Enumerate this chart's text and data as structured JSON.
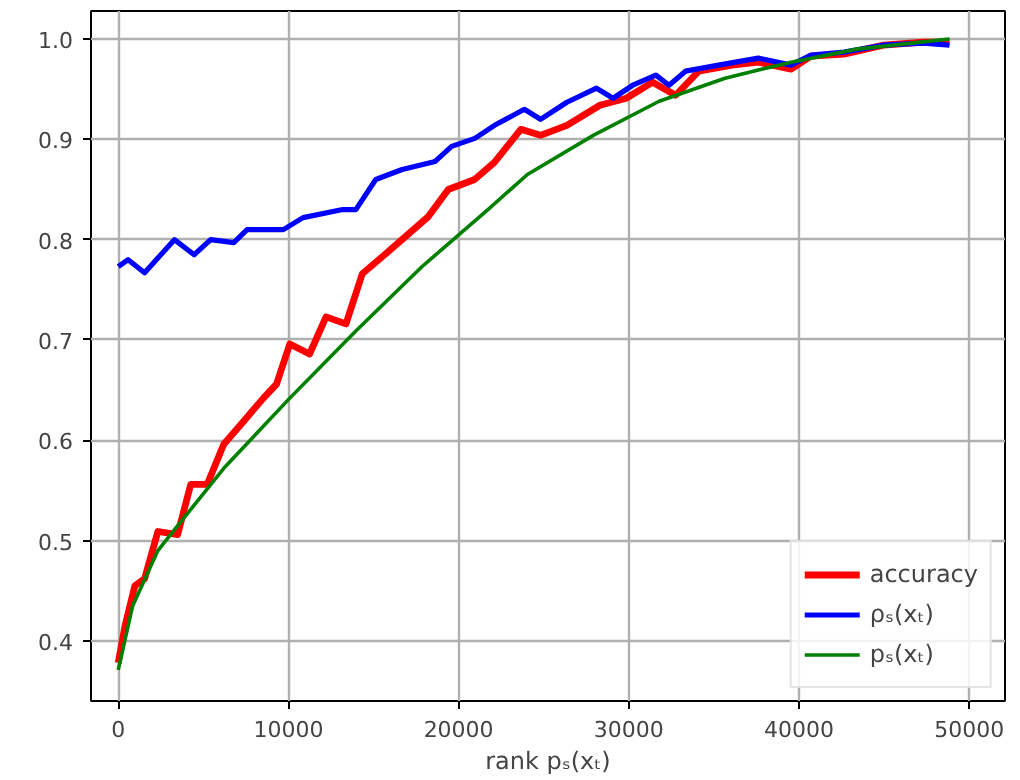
{
  "chart_data": {
    "type": "line",
    "xlabel": "rank pₛ(xₜ)",
    "xlim": [
      -1600,
      52100
    ],
    "ylim": [
      0.34,
      1.028
    ],
    "xticks": [
      0,
      10000,
      20000,
      30000,
      40000,
      50000
    ],
    "yticks": [
      {
        "value": 0.4,
        "label": "0.4"
      },
      {
        "value": 0.5,
        "label": "0.5"
      },
      {
        "value": 0.6,
        "label": "0.6"
      },
      {
        "value": 0.7,
        "label": "0.7"
      },
      {
        "value": 0.8,
        "label": "0.8"
      },
      {
        "value": 0.9,
        "label": "0.9"
      },
      {
        "value": 1.0,
        "label": "1.0"
      }
    ],
    "grid": true,
    "legend": "bottom right",
    "marker": "none",
    "line_style": "solid",
    "series": [
      {
        "name": "accuracy",
        "color": "#ff0000",
        "x": [
          0,
          400,
          980,
          1550,
          2330,
          3490,
          4260,
          5230,
          6200,
          7370,
          8530,
          9300,
          10080,
          11240,
          12210,
          13380,
          14340,
          15510,
          16670,
          18220,
          19390,
          20940,
          22100,
          23650,
          24810,
          26360,
          28300,
          29850,
          31400,
          32750,
          34110,
          36050,
          37600,
          39530,
          40700,
          42640,
          44960,
          47290,
          48840
        ],
        "values": [
          0.378,
          0.415,
          0.455,
          0.462,
          0.509,
          0.506,
          0.556,
          0.556,
          0.596,
          0.619,
          0.642,
          0.656,
          0.696,
          0.686,
          0.723,
          0.716,
          0.766,
          0.783,
          0.8,
          0.823,
          0.85,
          0.86,
          0.877,
          0.91,
          0.904,
          0.914,
          0.934,
          0.941,
          0.957,
          0.944,
          0.968,
          0.974,
          0.977,
          0.97,
          0.983,
          0.985,
          0.994,
          0.997,
          0.997
        ]
      },
      {
        "name": "ρₛ(xₜ)",
        "color": "#0000ff",
        "x": [
          0,
          580,
          1550,
          3300,
          4460,
          5430,
          6790,
          7570,
          9700,
          10860,
          13190,
          13960,
          15130,
          16680,
          18620,
          19590,
          20950,
          22110,
          23860,
          24810,
          26360,
          28100,
          29070,
          30230,
          31590,
          32360,
          33330,
          35270,
          37600,
          39530,
          40700,
          42640,
          44960,
          47290,
          48840
        ],
        "values": [
          0.773,
          0.78,
          0.767,
          0.8,
          0.785,
          0.8,
          0.797,
          0.81,
          0.81,
          0.822,
          0.83,
          0.83,
          0.86,
          0.87,
          0.878,
          0.893,
          0.901,
          0.914,
          0.93,
          0.92,
          0.937,
          0.951,
          0.941,
          0.954,
          0.964,
          0.954,
          0.968,
          0.974,
          0.981,
          0.974,
          0.984,
          0.987,
          0.994,
          0.996,
          0.994
        ]
      },
      {
        "name": "pₛ(xₜ)",
        "color": "#008000",
        "x": [
          0,
          850,
          2330,
          3880,
          6200,
          10080,
          13960,
          17840,
          21720,
          24040,
          27910,
          31780,
          35650,
          39530,
          43400,
          48840
        ],
        "values": [
          0.371,
          0.435,
          0.49,
          0.523,
          0.572,
          0.642,
          0.709,
          0.773,
          0.83,
          0.865,
          0.904,
          0.938,
          0.961,
          0.977,
          0.99,
          1.0
        ]
      }
    ]
  }
}
